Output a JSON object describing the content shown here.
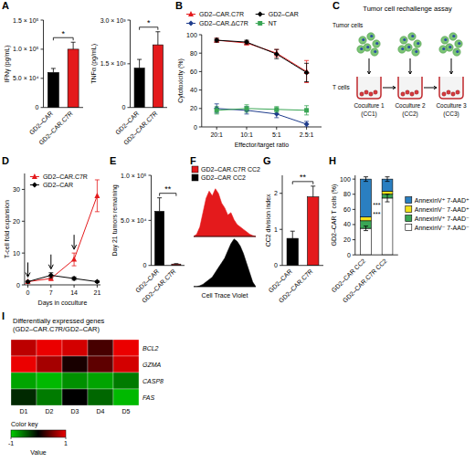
{
  "chart_data": [
    {
      "panel": "A",
      "type": "bar",
      "y_label": "IFNγ (pg/mL)",
      "categories": [
        "GD2–CAR",
        "GD2–CAR.C7R"
      ],
      "values": [
        60000,
        100000
      ],
      "errors": [
        7000,
        12000
      ],
      "colors": [
        "#000000",
        "#e41a1c"
      ],
      "ylim": [
        0,
        150000
      ],
      "yticks": [
        0,
        {
          "value": 50000,
          "label": "5.0 × 10⁴"
        },
        {
          "value": 100000,
          "label": "1.0 × 10⁵"
        },
        {
          "value": 150000,
          "label": "1.5 × 10⁵"
        }
      ],
      "annotations": [
        "*"
      ]
    },
    {
      "type": "bar",
      "y_label": "TNFα (pg/mL)",
      "categories": [
        "GD2–CAR",
        "GD2–CAR.C7R"
      ],
      "values": [
        1350,
        2150
      ],
      "errors": [
        300,
        450
      ],
      "colors": [
        "#000000",
        "#e41a1c"
      ],
      "ylim": [
        0,
        3000
      ],
      "yticks": [
        0,
        {
          "value": 1500,
          "label": "1.5 × 10³"
        },
        {
          "value": 3000,
          "label": "3.0 × 10³"
        }
      ],
      "annotations": [
        "*"
      ]
    },
    {
      "panel": "B",
      "type": "line",
      "x_label": "Effector/target ratio",
      "y_label": "Cytotoxicity (%)",
      "categories": [
        "20:1",
        "10:1",
        "5:1",
        "2.5:1"
      ],
      "ylim": [
        0,
        100
      ],
      "yticks": [
        0,
        20,
        40,
        60,
        80,
        100
      ],
      "legend": "top",
      "series": [
        {
          "name": "GD2–CAR.C7R",
          "color": "#e41a1c",
          "marker": "triangle",
          "values": [
            94,
            91,
            80,
            60
          ],
          "errors": [
            2,
            2,
            4,
            12
          ]
        },
        {
          "name": "GD2–CAR",
          "color": "#000000",
          "marker": "diamond",
          "values": [
            94,
            92,
            79,
            59
          ],
          "errors": [
            2,
            2,
            5,
            10
          ]
        },
        {
          "name": "GD2–CAR.ΔC7R",
          "color": "#1f3d8c",
          "marker": "diamond",
          "values": [
            20,
            18,
            14,
            3
          ],
          "errors": [
            5,
            4,
            4,
            3
          ]
        },
        {
          "name": "NT",
          "color": "#3aa655",
          "marker": "square",
          "values": [
            18,
            20,
            19,
            18
          ],
          "errors": [
            4,
            4,
            3,
            5
          ]
        }
      ]
    },
    {
      "panel": "D",
      "type": "line",
      "x_label": "Days in coculture",
      "y_label": "T-cell fold expansion",
      "x": [
        0,
        7,
        14,
        21
      ],
      "xlim": [
        -1,
        22
      ],
      "xticks": [
        0,
        7,
        14,
        21
      ],
      "ylim": [
        0,
        35
      ],
      "yticks": [
        0,
        10,
        20,
        30
      ],
      "legend": "top-left",
      "rechallenge_days": [
        0,
        7,
        14
      ],
      "series": [
        {
          "name": "GD2–CAR.C7R",
          "color": "#e41a1c",
          "marker": "triangle",
          "values": [
            1,
            2,
            8,
            28
          ],
          "errors": [
            0.3,
            0.6,
            2,
            5
          ]
        },
        {
          "name": "GD2–CAR",
          "color": "#000000",
          "marker": "diamond",
          "values": [
            1,
            3,
            2,
            1
          ],
          "errors": [
            0.2,
            0.8,
            0.5,
            0.3
          ]
        }
      ]
    },
    {
      "panel": "E",
      "type": "bar",
      "y_label": "Day 21 tumors remaining",
      "categories": [
        "GD2–CAR",
        "GD2–CAR.C7R"
      ],
      "values": [
        60000,
        1500
      ],
      "errors": [
        15000,
        500
      ],
      "colors": [
        "#000000",
        "#e41a1c"
      ],
      "ylim": [
        0,
        100000
      ],
      "yticks": [
        0,
        {
          "value": 50000,
          "label": "5.0 × 10⁴"
        },
        {
          "value": 100000,
          "label": "1.0 × 10⁵"
        }
      ],
      "annotations": [
        "**"
      ]
    },
    {
      "panel": "F",
      "type": "area",
      "x_label": "Cell Trace Violet",
      "tick_labels": false,
      "legend": "top",
      "x": [
        0,
        1,
        2,
        3,
        4,
        5,
        6,
        7,
        8,
        9,
        10,
        11,
        12,
        13,
        14,
        15,
        16,
        17,
        18,
        19,
        20
      ],
      "xlim": [
        0,
        20
      ],
      "ylim": [
        0,
        1
      ],
      "series": [
        {
          "name": "GD2–CAR.C7R CC2",
          "color": "#e41a1c",
          "values": [
            0,
            0.05,
            0.2,
            0.5,
            0.8,
            0.95,
            0.85,
            1,
            0.9,
            0.7,
            0.6,
            0.45,
            0.5,
            0.35,
            0.25,
            0.2,
            0.15,
            0.1,
            0.05,
            0.02,
            0
          ]
        },
        {
          "name": "GD2–CAR CC2",
          "color": "#000000",
          "values": [
            0,
            0,
            0.02,
            0.05,
            0.1,
            0.15,
            0.2,
            0.3,
            0.4,
            0.5,
            0.6,
            0.75,
            0.9,
            1,
            0.95,
            0.85,
            0.7,
            0.5,
            0.3,
            0.1,
            0
          ]
        }
      ]
    },
    {
      "panel": "G",
      "type": "bar",
      "y_label": "CC2 division index",
      "categories": [
        "GD2–CAR",
        "GD2–CAR.C7R"
      ],
      "values": [
        0.75,
        1.9
      ],
      "errors": [
        0.2,
        0.3
      ],
      "colors": [
        "#000000",
        "#e41a1c"
      ],
      "ylim": [
        0,
        2.5
      ],
      "yticks": [
        0,
        1,
        2
      ],
      "annotations": [
        "**"
      ]
    },
    {
      "panel": "H",
      "type": "bar",
      "stacked": true,
      "legend": "right",
      "y_label": "GD2–CAR T cells (%)",
      "categories": [
        "GD2–CAR CC2",
        "GD2–CAR.C7R CC2"
      ],
      "ylim": [
        0,
        105
      ],
      "yticks": [
        0,
        20,
        40,
        60,
        80,
        100
      ],
      "series": [
        {
          "name": "AnnexinV⁻ 7-AAD⁻",
          "color": "#ffffff",
          "values": [
            35,
            75
          ],
          "errors": [
            3,
            5
          ]
        },
        {
          "name": "AnnexinV⁺ 7-AAD⁻",
          "color": "#3aa655",
          "values": [
            10,
            5
          ]
        },
        {
          "name": "AnnexinV⁻ 7-AAD⁺",
          "color": "#f2e21a",
          "values": [
            5,
            4
          ]
        },
        {
          "name": "AnnexinV⁺ 7-AAD⁺",
          "color": "#2a7fc1",
          "values": [
            50,
            16
          ],
          "errors": [
            3,
            3
          ]
        }
      ],
      "annotations": [
        "***",
        "***"
      ]
    },
    {
      "panel": "I",
      "type": "heatmap",
      "title": "Differentially expressed genes (GD2–CAR.C7R/GD2–CAR)",
      "rows": [
        "BCL2",
        "GZMA",
        "CASP8",
        "FAS"
      ],
      "columns": [
        "D1",
        "D2",
        "D3",
        "D4",
        "D5"
      ],
      "cells": [
        [
          0.8,
          1,
          0.9,
          0.3,
          1
        ],
        [
          1,
          0.7,
          0.1,
          0.4,
          0.9
        ],
        [
          -0.8,
          -0.9,
          -0.7,
          -0.8,
          -0.6
        ],
        [
          -0.2,
          -0.6,
          0,
          -0.5,
          -0.9
        ]
      ],
      "colorbar": {
        "title": "Color key",
        "label": "Value",
        "range": [
          -1,
          1
        ],
        "ticks": [
          -1,
          1
        ]
      }
    }
  ],
  "diagram": {
    "panel": "C",
    "title": "Tumor cell rechallenge assay",
    "tumor_label": "Tumor cells",
    "tcell_label": "T cells",
    "steps": [
      {
        "label": "Coculture 1",
        "short": "(CC1)"
      },
      {
        "label": "Coculture 2",
        "short": "(CC2)"
      },
      {
        "label": "Coculture 3",
        "short": "(CC3)"
      }
    ]
  }
}
